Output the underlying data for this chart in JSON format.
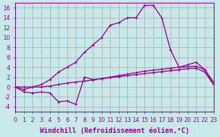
{
  "title": "",
  "xlabel": "Windchill (Refroidissement éolien,°C)",
  "x": [
    0,
    1,
    2,
    3,
    4,
    5,
    6,
    7,
    8,
    9,
    10,
    11,
    12,
    13,
    14,
    15,
    16,
    17,
    18,
    19,
    20,
    21,
    22,
    23
  ],
  "line1_y": [
    0,
    -0.5,
    0,
    0.5,
    1.5,
    3,
    4,
    5,
    7,
    8.5,
    10,
    12.5,
    13,
    14,
    14,
    16.5,
    16.5,
    14,
    7.5,
    4,
    4.5,
    5,
    3.5,
    1
  ],
  "line2_y": [
    0,
    0,
    0,
    0,
    0.2,
    0.5,
    0.8,
    1.0,
    1.2,
    1.4,
    1.7,
    2.0,
    2.3,
    2.6,
    2.9,
    3.2,
    3.4,
    3.6,
    3.8,
    4.0,
    4.1,
    4.2,
    3.5,
    0.5
  ],
  "line3_y": [
    0,
    -1,
    -1.2,
    -1.0,
    -1.2,
    -3.0,
    -2.8,
    -3.5,
    2.0,
    1.5,
    1.7,
    1.9,
    2.1,
    2.3,
    2.5,
    2.7,
    2.9,
    3.1,
    3.3,
    3.5,
    3.7,
    3.8,
    3.0,
    0.5
  ],
  "color": "#990099",
  "bg_color": "#c8e8ea",
  "grid_color": "#aaaaaa",
  "ylim": [
    -5,
    17
  ],
  "xlim": [
    0,
    23
  ],
  "yticks": [
    -4,
    -2,
    0,
    2,
    4,
    6,
    8,
    10,
    12,
    14,
    16
  ],
  "xticks": [
    0,
    1,
    2,
    3,
    4,
    5,
    6,
    7,
    8,
    9,
    10,
    11,
    12,
    13,
    14,
    15,
    16,
    17,
    18,
    19,
    20,
    21,
    22,
    23
  ],
  "tick_fontsize": 6.0,
  "xlabel_fontsize": 7,
  "line_width": 1.0,
  "marker": "+",
  "marker_size": 3.5,
  "marker_ew": 0.8
}
